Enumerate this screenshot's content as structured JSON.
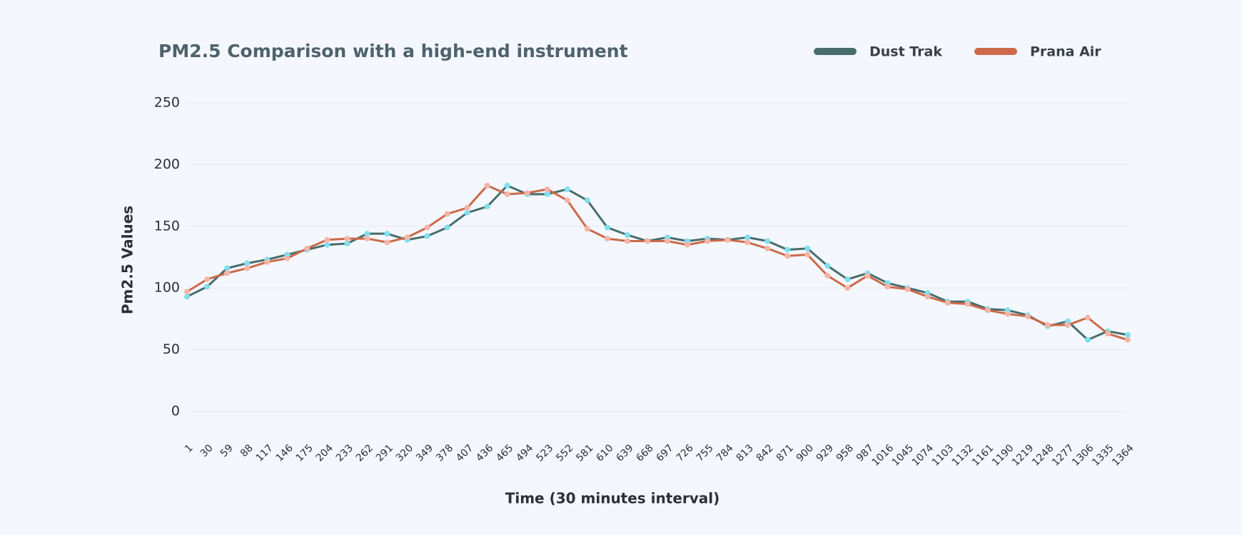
{
  "chart_data": {
    "type": "line",
    "title": "PM2.5 Comparison with a high-end instrument",
    "x_label": "Time (30 minutes interval)",
    "y_label": "Pm2.5 Values",
    "categories": [
      "1",
      "30",
      "59",
      "88",
      "117",
      "146",
      "175",
      "204",
      "233",
      "262",
      "291",
      "320",
      "349",
      "378",
      "407",
      "436",
      "465",
      "494",
      "523",
      "552",
      "581",
      "610",
      "639",
      "668",
      "697",
      "726",
      "755",
      "784",
      "813",
      "842",
      "871",
      "900",
      "929",
      "958",
      "987",
      "1016",
      "1045",
      "1074",
      "1103",
      "1132",
      "1161",
      "1190",
      "1219",
      "1248",
      "1277",
      "1306",
      "1335",
      "1364"
    ],
    "series": [
      {
        "name": "Dust Trak",
        "color": "#476d6c",
        "marker_color": "#7fdfee",
        "values": [
          93,
          101,
          116,
          120,
          123,
          127,
          131,
          135,
          136,
          144,
          144,
          139,
          142,
          149,
          161,
          166,
          183,
          176,
          176,
          180,
          171,
          149,
          143,
          138,
          141,
          138,
          140,
          139,
          141,
          138,
          131,
          132,
          118,
          107,
          112,
          104,
          100,
          96,
          89,
          89,
          83,
          82,
          78,
          69,
          73,
          58,
          65,
          62
        ]
      },
      {
        "name": "Prana Air",
        "color": "#cc6a4a",
        "marker_color": "#f5b5a8",
        "values": [
          97,
          107,
          112,
          116,
          121,
          124,
          132,
          139,
          140,
          140,
          137,
          141,
          149,
          160,
          165,
          183,
          176,
          177,
          180,
          171,
          148,
          140,
          138,
          138,
          138,
          135,
          138,
          139,
          137,
          132,
          126,
          127,
          110,
          100,
          110,
          101,
          99,
          93,
          88,
          87,
          82,
          79,
          77,
          70,
          70,
          76,
          63,
          58
        ]
      }
    ],
    "ylim": [
      0,
      250
    ],
    "yticks": [
      0,
      50,
      100,
      150,
      200,
      250
    ],
    "grid": true,
    "legend": "top-right"
  }
}
